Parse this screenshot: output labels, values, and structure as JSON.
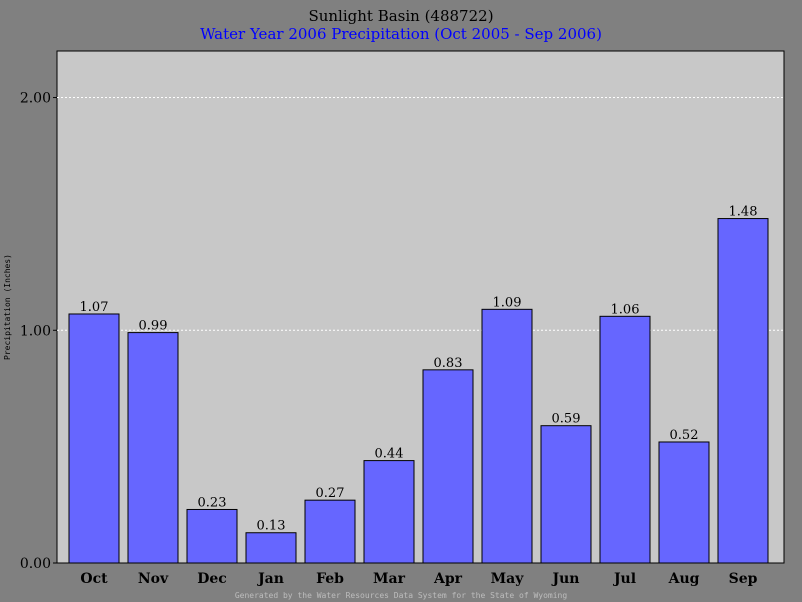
{
  "chart_data": {
    "type": "bar",
    "title": "Sunlight Basin (488722)",
    "subtitle": "Water Year 2006 Precipitation (Oct 2005 - Sep 2006)",
    "ylabel": "Precipitation (Inches)",
    "xlabel": "",
    "categories": [
      "Oct",
      "Nov",
      "Dec",
      "Jan",
      "Feb",
      "Mar",
      "Apr",
      "May",
      "Jun",
      "Jul",
      "Aug",
      "Sep"
    ],
    "values": [
      1.07,
      0.99,
      0.23,
      0.13,
      0.27,
      0.44,
      0.83,
      1.09,
      0.59,
      1.06,
      0.52,
      1.48
    ],
    "data_labels": [
      "1.07",
      "0.99",
      "0.23",
      "0.13",
      "0.27",
      "0.44",
      "0.83",
      "1.09",
      "0.59",
      "1.06",
      "0.52",
      "1.48"
    ],
    "ylim": [
      0,
      2.2
    ],
    "yticks": [
      0,
      1,
      2
    ],
    "ytick_labels": [
      "0.00",
      "1.00",
      "2.00"
    ],
    "grid": true,
    "legend": "none",
    "colors": {
      "bar": "#6666ff",
      "plot_background": "#c8c8c8",
      "figure_background": "#808080",
      "title": "#000000",
      "subtitle": "#0000ff",
      "gridline": "#ffffff"
    }
  },
  "footer": "Generated by the Water Resources Data System for the State of Wyoming"
}
